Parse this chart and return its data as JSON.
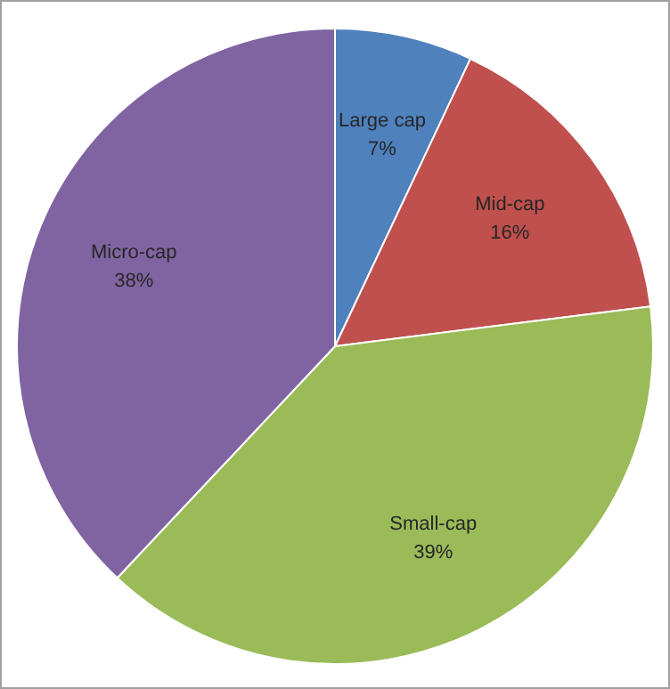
{
  "chart_data": {
    "type": "pie",
    "categories": [
      "Large cap",
      "Mid-cap",
      "Small-cap",
      "Micro-cap"
    ],
    "values": [
      7,
      16,
      39,
      38
    ],
    "colors": [
      "#4f81bd",
      "#c0504d",
      "#9bbb59",
      "#8064a2"
    ],
    "value_labels": [
      "7%",
      "16%",
      "39%",
      "38%"
    ],
    "legend": false
  }
}
